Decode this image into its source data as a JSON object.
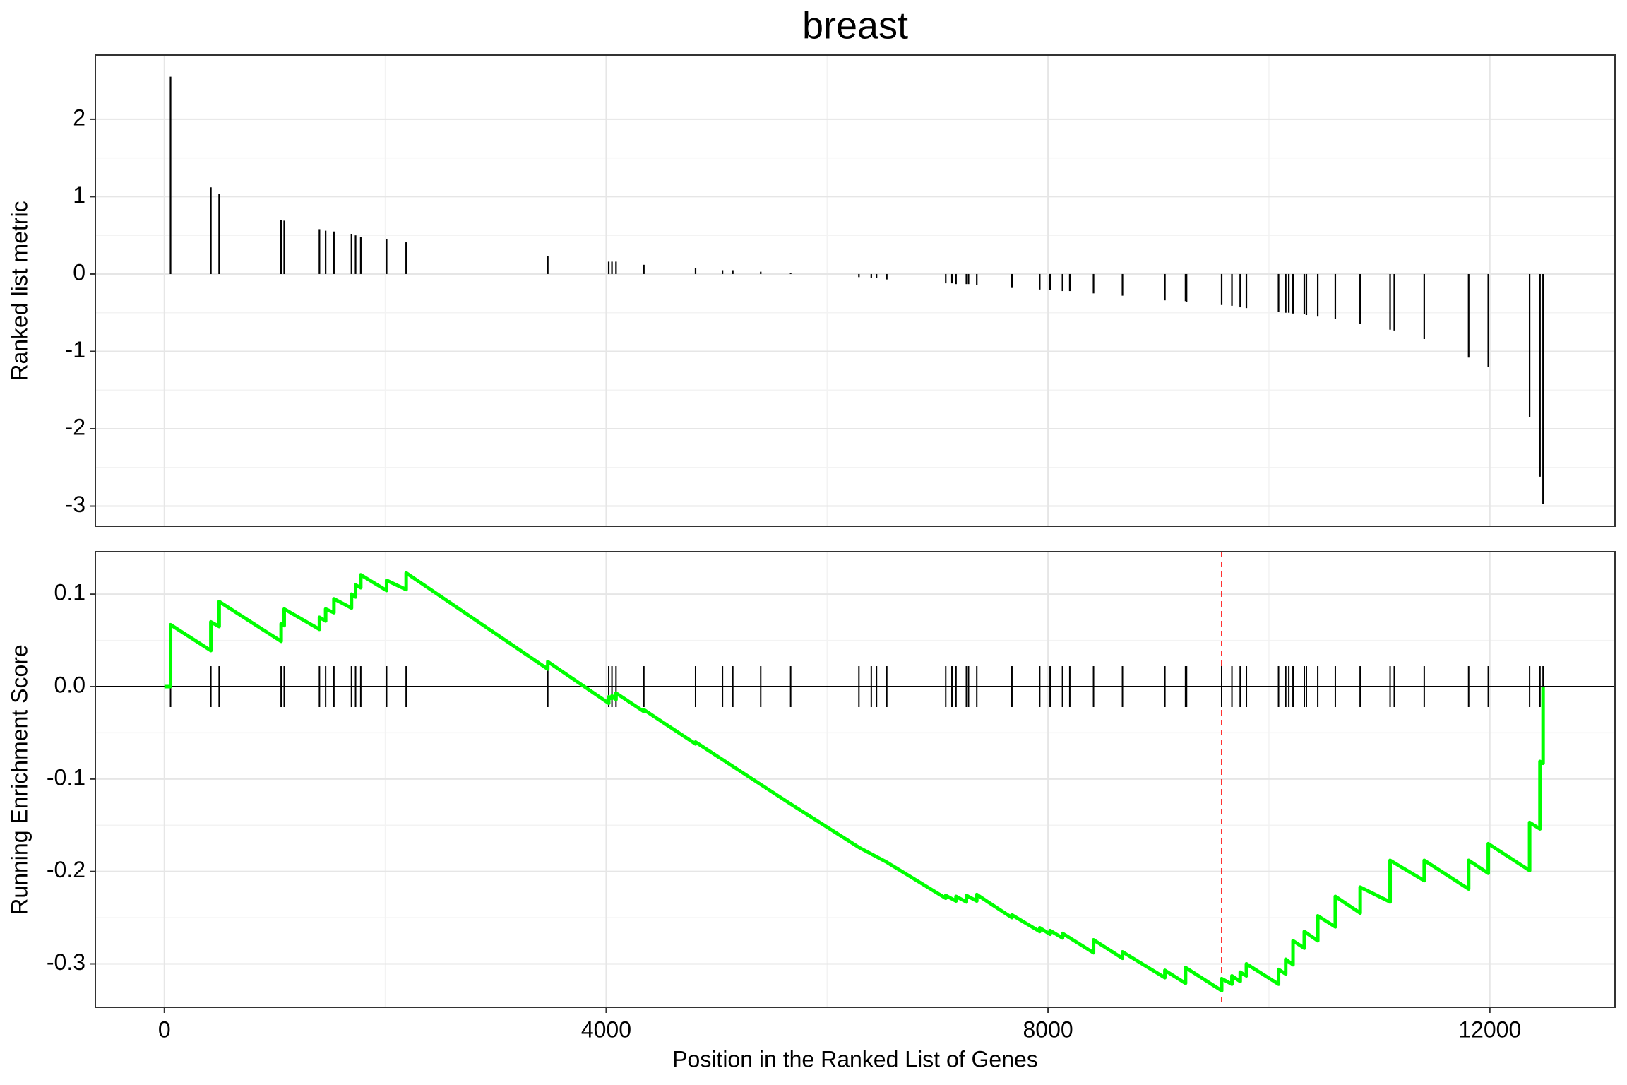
{
  "chart_data": [
    {
      "type": "bar",
      "title": "breast",
      "ylabel": "Ranked list metric",
      "color": "#000000",
      "grid": true,
      "x": [
        56,
        421,
        496,
        1057,
        1085,
        1404,
        1460,
        1535,
        1694,
        1731,
        1778,
        2012,
        2189,
        3471,
        4023,
        4052,
        4089,
        4341,
        4809,
        5053,
        5146,
        5399,
        5670,
        6288,
        6400,
        6447,
        6540,
        7074,
        7130,
        7167,
        7261,
        7280,
        7355,
        7673,
        7925,
        8019,
        8131,
        8197,
        8412,
        8674,
        9058,
        9245,
        9254,
        9572,
        9665,
        9740,
        9796,
        10087,
        10152,
        10180,
        10218,
        10320,
        10339,
        10442,
        10601,
        10826,
        11097,
        11135,
        11406,
        11808,
        11986,
        12360,
        12454,
        12482
      ],
      "values": [
        2.55,
        1.12,
        1.04,
        0.7,
        0.69,
        0.58,
        0.56,
        0.55,
        0.52,
        0.5,
        0.48,
        0.45,
        0.41,
        0.23,
        0.16,
        0.16,
        0.16,
        0.12,
        0.08,
        0.05,
        0.05,
        0.03,
        0.01,
        -0.04,
        -0.05,
        -0.05,
        -0.07,
        -0.12,
        -0.12,
        -0.13,
        -0.13,
        -0.13,
        -0.14,
        -0.18,
        -0.2,
        -0.21,
        -0.22,
        -0.22,
        -0.25,
        -0.28,
        -0.34,
        -0.35,
        -0.36,
        -0.4,
        -0.41,
        -0.43,
        -0.44,
        -0.49,
        -0.5,
        -0.5,
        -0.51,
        -0.52,
        -0.53,
        -0.55,
        -0.58,
        -0.64,
        -0.72,
        -0.73,
        -0.84,
        -1.08,
        -1.2,
        -1.85,
        -2.62,
        -2.97
      ],
      "ylim": [
        -3.26,
        2.83
      ],
      "yticks": [
        -3,
        -2,
        -1,
        0,
        1,
        2
      ]
    },
    {
      "type": "line",
      "xlabel": "Position in the Ranked List of Genes",
      "ylabel": "Running Enrichment Score",
      "color": "#00ff00",
      "grid": true,
      "x": [
        0,
        56,
        56,
        421,
        421,
        496,
        496,
        1057,
        1057,
        1085,
        1085,
        1404,
        1404,
        1460,
        1460,
        1535,
        1535,
        1694,
        1694,
        1731,
        1731,
        1778,
        1778,
        2012,
        2012,
        2189,
        2189,
        3471,
        3471,
        4023,
        4023,
        4052,
        4052,
        4089,
        4089,
        4341,
        4341,
        4809,
        4809,
        5670,
        6288,
        6540,
        7074,
        7074,
        7167,
        7167,
        7261,
        7261,
        7355,
        7355,
        7673,
        7673,
        7925,
        7925,
        8019,
        8019,
        8131,
        8131,
        8412,
        8412,
        8674,
        8674,
        9058,
        9058,
        9245,
        9245,
        9572,
        9572,
        9665,
        9665,
        9740,
        9740,
        9796,
        9796,
        10087,
        10087,
        10152,
        10152,
        10218,
        10218,
        10320,
        10320,
        10442,
        10442,
        10601,
        10601,
        10826,
        10826,
        11097,
        11097,
        11406,
        11406,
        11808,
        11808,
        11986,
        11986,
        12360,
        12360,
        12454,
        12454,
        12482,
        12482
      ],
      "values": [
        0,
        0,
        0.067,
        0.039,
        0.07,
        0.065,
        0.092,
        0.049,
        0.068,
        0.066,
        0.084,
        0.062,
        0.075,
        0.071,
        0.084,
        0.08,
        0.095,
        0.085,
        0.1,
        0.097,
        0.11,
        0.107,
        0.121,
        0.104,
        0.115,
        0.105,
        0.123,
        0.019,
        0.027,
        -0.018,
        -0.011,
        -0.013,
        -0.01,
        -0.014,
        -0.007,
        -0.027,
        -0.025,
        -0.062,
        -0.06,
        -0.127,
        -0.174,
        -0.19,
        -0.229,
        -0.226,
        -0.232,
        -0.227,
        -0.233,
        -0.226,
        -0.232,
        -0.225,
        -0.25,
        -0.247,
        -0.265,
        -0.261,
        -0.268,
        -0.264,
        -0.272,
        -0.267,
        -0.288,
        -0.274,
        -0.294,
        -0.287,
        -0.315,
        -0.307,
        -0.321,
        -0.304,
        -0.329,
        -0.316,
        -0.322,
        -0.313,
        -0.319,
        -0.309,
        -0.313,
        -0.3,
        -0.322,
        -0.306,
        -0.311,
        -0.295,
        -0.301,
        -0.275,
        -0.283,
        -0.265,
        -0.275,
        -0.248,
        -0.26,
        -0.227,
        -0.245,
        -0.217,
        -0.233,
        -0.188,
        -0.21,
        -0.188,
        -0.219,
        -0.188,
        -0.202,
        -0.17,
        -0.199,
        -0.147,
        -0.154,
        -0.081,
        -0.083,
        0
      ],
      "vline": 9572,
      "vline_color": "#ff0000",
      "xlim": [
        -625,
        13133
      ],
      "xticks": [
        0,
        4000,
        8000,
        12000
      ],
      "ylim": [
        -0.347,
        0.146
      ],
      "yticks": [
        -0.3,
        -0.2,
        -0.1,
        {
          "value": 0,
          "label": "0.0"
        },
        0.1
      ]
    }
  ]
}
